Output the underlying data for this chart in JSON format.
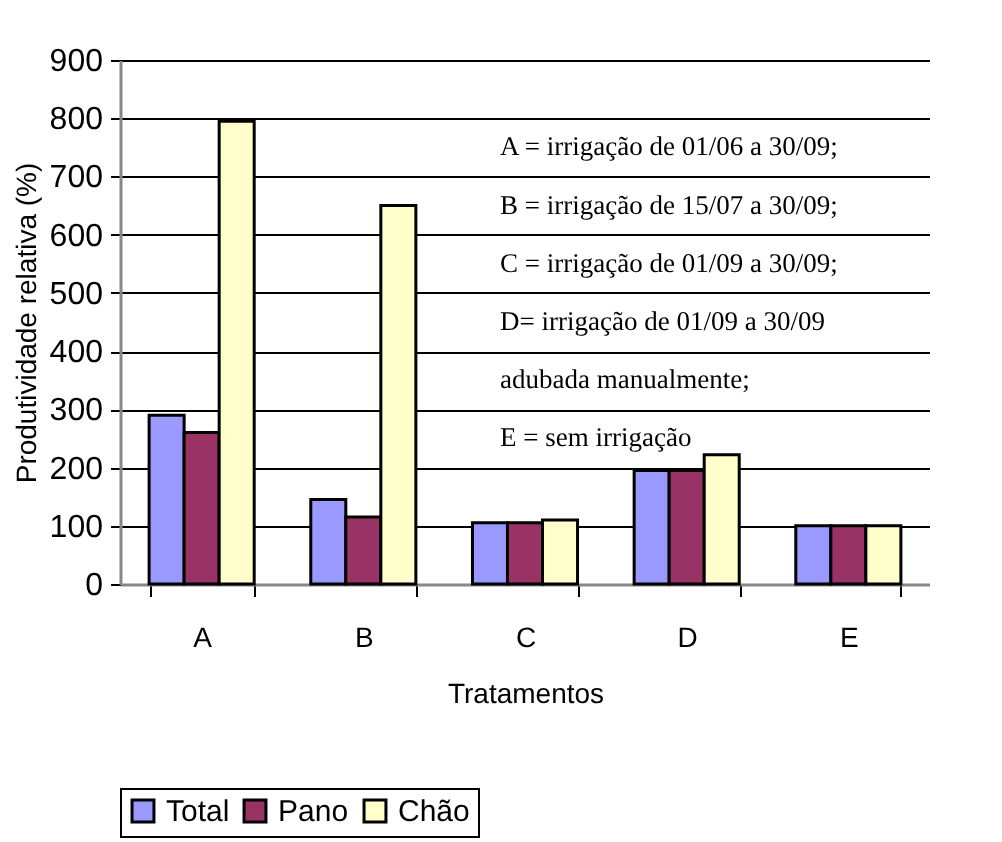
{
  "chart_data": {
    "type": "bar",
    "xlabel": "Tratamentos",
    "ylabel": "Produtividade relativa (%)",
    "categories": [
      "A",
      "B",
      "C",
      "D",
      "E"
    ],
    "series": [
      {
        "name": "Total",
        "color": "#9999ff",
        "values": [
          290,
          145,
          105,
          195,
          100
        ]
      },
      {
        "name": "Pano",
        "color": "#993366",
        "values": [
          260,
          115,
          105,
          195,
          100
        ]
      },
      {
        "name": "Chão",
        "color": "#ffffcc",
        "values": [
          795,
          650,
          110,
          222,
          100
        ]
      }
    ],
    "ylim": [
      0,
      900
    ],
    "yticks": [
      0,
      100,
      200,
      300,
      400,
      500,
      600,
      700,
      800,
      900
    ],
    "grid": "y",
    "legend": "bottom",
    "annotations": [
      "A = irrigação de 01/06 a 30/09;",
      "B = irrigação de 15/07 a 30/09;",
      "C = irrigação de 01/09 a 30/09;",
      "D= irrigação de 01/09 a 30/09",
      "adubada manualmente;",
      "E = sem irrigação"
    ]
  }
}
